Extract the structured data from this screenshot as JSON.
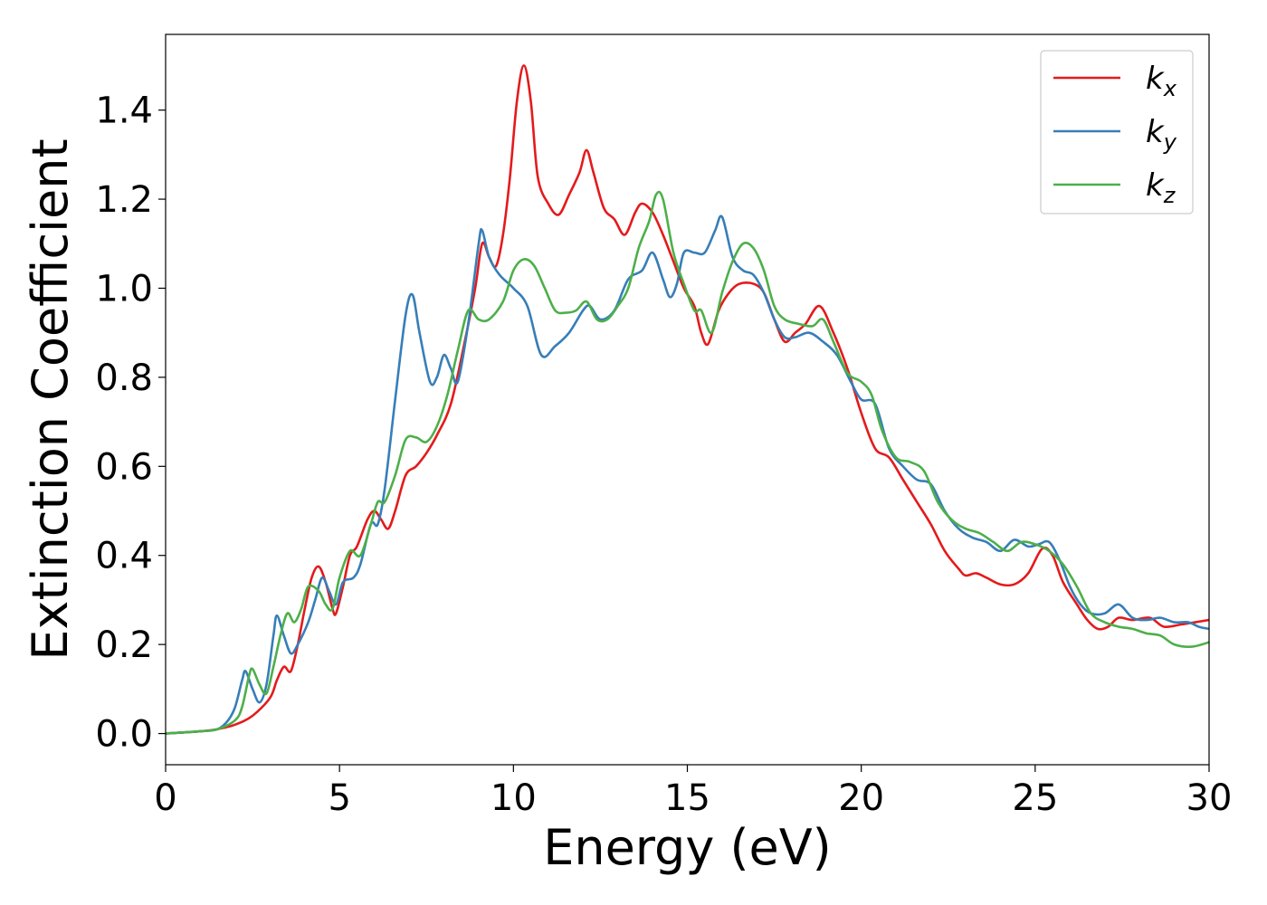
{
  "chart_data": {
    "type": "line",
    "xlabel": "Energy (eV)",
    "ylabel": "Extinction Coefficient",
    "xlim": [
      0,
      30
    ],
    "ylim": [
      -0.07,
      1.57
    ],
    "xticks": [
      0,
      5,
      10,
      15,
      20,
      25,
      30
    ],
    "xtick_labels": [
      "0",
      "5",
      "10",
      "15",
      "20",
      "25",
      "30"
    ],
    "yticks": [
      0.0,
      0.2,
      0.4,
      0.6,
      0.8,
      1.0,
      1.2,
      1.4
    ],
    "ytick_labels": [
      "0.0",
      "0.2",
      "0.4",
      "0.6",
      "0.8",
      "1.0",
      "1.2",
      "1.4"
    ],
    "grid": false,
    "legend_position": "top-right",
    "series": [
      {
        "name": "k",
        "subscript": "x",
        "color": "#e41a1c",
        "points": [
          [
            0,
            0.0
          ],
          [
            1,
            0.005
          ],
          [
            1.5,
            0.01
          ],
          [
            2,
            0.02
          ],
          [
            2.5,
            0.04
          ],
          [
            3,
            0.08
          ],
          [
            3.2,
            0.12
          ],
          [
            3.4,
            0.15
          ],
          [
            3.6,
            0.14
          ],
          [
            3.8,
            0.2
          ],
          [
            4.0,
            0.28
          ],
          [
            4.2,
            0.35
          ],
          [
            4.4,
            0.375
          ],
          [
            4.6,
            0.34
          ],
          [
            4.8,
            0.28
          ],
          [
            4.9,
            0.27
          ],
          [
            5.1,
            0.33
          ],
          [
            5.3,
            0.4
          ],
          [
            5.5,
            0.42
          ],
          [
            5.8,
            0.48
          ],
          [
            6.0,
            0.5
          ],
          [
            6.2,
            0.48
          ],
          [
            6.4,
            0.46
          ],
          [
            6.6,
            0.5
          ],
          [
            6.9,
            0.58
          ],
          [
            7.2,
            0.6
          ],
          [
            7.5,
            0.63
          ],
          [
            7.8,
            0.67
          ],
          [
            8.2,
            0.74
          ],
          [
            8.6,
            0.88
          ],
          [
            8.9,
            1.0
          ],
          [
            9.1,
            1.1
          ],
          [
            9.3,
            1.07
          ],
          [
            9.5,
            1.05
          ],
          [
            9.7,
            1.12
          ],
          [
            9.9,
            1.25
          ],
          [
            10.1,
            1.42
          ],
          [
            10.3,
            1.5
          ],
          [
            10.5,
            1.42
          ],
          [
            10.7,
            1.25
          ],
          [
            11.0,
            1.19
          ],
          [
            11.3,
            1.165
          ],
          [
            11.6,
            1.21
          ],
          [
            11.9,
            1.26
          ],
          [
            12.1,
            1.31
          ],
          [
            12.3,
            1.26
          ],
          [
            12.6,
            1.18
          ],
          [
            12.9,
            1.155
          ],
          [
            13.2,
            1.12
          ],
          [
            13.5,
            1.17
          ],
          [
            13.7,
            1.19
          ],
          [
            14.0,
            1.17
          ],
          [
            14.3,
            1.12
          ],
          [
            14.6,
            1.06
          ],
          [
            14.9,
            1.0
          ],
          [
            15.2,
            0.96
          ],
          [
            15.4,
            0.9
          ],
          [
            15.6,
            0.875
          ],
          [
            15.9,
            0.95
          ],
          [
            16.2,
            0.99
          ],
          [
            16.5,
            1.01
          ],
          [
            16.9,
            1.01
          ],
          [
            17.2,
            0.99
          ],
          [
            17.5,
            0.93
          ],
          [
            17.8,
            0.88
          ],
          [
            18.1,
            0.9
          ],
          [
            18.4,
            0.92
          ],
          [
            18.8,
            0.96
          ],
          [
            19.2,
            0.9
          ],
          [
            19.6,
            0.82
          ],
          [
            20.0,
            0.72
          ],
          [
            20.4,
            0.64
          ],
          [
            20.8,
            0.62
          ],
          [
            21.2,
            0.57
          ],
          [
            21.6,
            0.52
          ],
          [
            22.0,
            0.47
          ],
          [
            22.4,
            0.41
          ],
          [
            22.8,
            0.37
          ],
          [
            23.0,
            0.355
          ],
          [
            23.3,
            0.36
          ],
          [
            23.6,
            0.35
          ],
          [
            24.0,
            0.335
          ],
          [
            24.4,
            0.335
          ],
          [
            24.8,
            0.36
          ],
          [
            25.2,
            0.415
          ],
          [
            25.5,
            0.4
          ],
          [
            25.8,
            0.34
          ],
          [
            26.2,
            0.29
          ],
          [
            26.5,
            0.255
          ],
          [
            26.8,
            0.235
          ],
          [
            27.1,
            0.24
          ],
          [
            27.4,
            0.26
          ],
          [
            27.8,
            0.255
          ],
          [
            28.3,
            0.26
          ],
          [
            28.7,
            0.24
          ],
          [
            29.2,
            0.245
          ],
          [
            29.6,
            0.25
          ],
          [
            30.0,
            0.255
          ]
        ]
      },
      {
        "name": "k",
        "subscript": "y",
        "color": "#377eb8",
        "points": [
          [
            0,
            0.0
          ],
          [
            1,
            0.005
          ],
          [
            1.5,
            0.01
          ],
          [
            1.8,
            0.03
          ],
          [
            2.0,
            0.06
          ],
          [
            2.2,
            0.12
          ],
          [
            2.3,
            0.14
          ],
          [
            2.5,
            0.1
          ],
          [
            2.7,
            0.07
          ],
          [
            2.9,
            0.11
          ],
          [
            3.1,
            0.22
          ],
          [
            3.2,
            0.265
          ],
          [
            3.4,
            0.22
          ],
          [
            3.6,
            0.18
          ],
          [
            3.8,
            0.2
          ],
          [
            4.1,
            0.25
          ],
          [
            4.3,
            0.3
          ],
          [
            4.5,
            0.35
          ],
          [
            4.7,
            0.32
          ],
          [
            4.9,
            0.29
          ],
          [
            5.1,
            0.34
          ],
          [
            5.4,
            0.35
          ],
          [
            5.6,
            0.38
          ],
          [
            5.9,
            0.47
          ],
          [
            6.1,
            0.47
          ],
          [
            6.3,
            0.55
          ],
          [
            6.6,
            0.75
          ],
          [
            6.9,
            0.94
          ],
          [
            7.1,
            0.985
          ],
          [
            7.3,
            0.9
          ],
          [
            7.6,
            0.79
          ],
          [
            7.8,
            0.8
          ],
          [
            8.0,
            0.85
          ],
          [
            8.2,
            0.82
          ],
          [
            8.4,
            0.79
          ],
          [
            8.7,
            0.92
          ],
          [
            9.0,
            1.1
          ],
          [
            9.1,
            1.13
          ],
          [
            9.3,
            1.07
          ],
          [
            9.6,
            1.03
          ],
          [
            10.0,
            1.0
          ],
          [
            10.4,
            0.96
          ],
          [
            10.8,
            0.85
          ],
          [
            11.2,
            0.87
          ],
          [
            11.6,
            0.9
          ],
          [
            12.0,
            0.95
          ],
          [
            12.2,
            0.96
          ],
          [
            12.5,
            0.93
          ],
          [
            12.9,
            0.95
          ],
          [
            13.3,
            1.02
          ],
          [
            13.7,
            1.04
          ],
          [
            14.0,
            1.08
          ],
          [
            14.3,
            1.02
          ],
          [
            14.5,
            0.98
          ],
          [
            14.7,
            1.01
          ],
          [
            14.9,
            1.08
          ],
          [
            15.2,
            1.08
          ],
          [
            15.5,
            1.08
          ],
          [
            15.8,
            1.13
          ],
          [
            16.0,
            1.16
          ],
          [
            16.3,
            1.07
          ],
          [
            16.6,
            1.04
          ],
          [
            16.9,
            1.03
          ],
          [
            17.2,
            0.99
          ],
          [
            17.5,
            0.93
          ],
          [
            17.8,
            0.89
          ],
          [
            18.1,
            0.89
          ],
          [
            18.5,
            0.9
          ],
          [
            18.9,
            0.88
          ],
          [
            19.3,
            0.85
          ],
          [
            19.7,
            0.79
          ],
          [
            20.0,
            0.75
          ],
          [
            20.4,
            0.74
          ],
          [
            20.8,
            0.64
          ],
          [
            21.2,
            0.6
          ],
          [
            21.6,
            0.57
          ],
          [
            22.0,
            0.56
          ],
          [
            22.4,
            0.5
          ],
          [
            22.8,
            0.46
          ],
          [
            23.2,
            0.44
          ],
          [
            23.6,
            0.43
          ],
          [
            24.0,
            0.41
          ],
          [
            24.4,
            0.435
          ],
          [
            24.8,
            0.42
          ],
          [
            25.1,
            0.425
          ],
          [
            25.4,
            0.43
          ],
          [
            25.7,
            0.39
          ],
          [
            26.0,
            0.33
          ],
          [
            26.3,
            0.29
          ],
          [
            26.6,
            0.27
          ],
          [
            27.0,
            0.27
          ],
          [
            27.4,
            0.29
          ],
          [
            27.8,
            0.26
          ],
          [
            28.2,
            0.255
          ],
          [
            28.6,
            0.26
          ],
          [
            29.0,
            0.25
          ],
          [
            29.4,
            0.25
          ],
          [
            29.7,
            0.24
          ],
          [
            30.0,
            0.235
          ]
        ]
      },
      {
        "name": "k",
        "subscript": "z",
        "color": "#4daf4a",
        "points": [
          [
            0,
            0.0
          ],
          [
            1,
            0.005
          ],
          [
            1.5,
            0.01
          ],
          [
            2.0,
            0.03
          ],
          [
            2.2,
            0.06
          ],
          [
            2.4,
            0.13
          ],
          [
            2.5,
            0.145
          ],
          [
            2.7,
            0.11
          ],
          [
            2.9,
            0.09
          ],
          [
            3.1,
            0.15
          ],
          [
            3.3,
            0.22
          ],
          [
            3.5,
            0.27
          ],
          [
            3.7,
            0.25
          ],
          [
            3.9,
            0.28
          ],
          [
            4.1,
            0.33
          ],
          [
            4.4,
            0.32
          ],
          [
            4.6,
            0.29
          ],
          [
            4.8,
            0.28
          ],
          [
            5.0,
            0.35
          ],
          [
            5.3,
            0.41
          ],
          [
            5.6,
            0.4
          ],
          [
            5.9,
            0.47
          ],
          [
            6.1,
            0.52
          ],
          [
            6.3,
            0.52
          ],
          [
            6.6,
            0.58
          ],
          [
            6.9,
            0.66
          ],
          [
            7.2,
            0.665
          ],
          [
            7.5,
            0.655
          ],
          [
            7.8,
            0.69
          ],
          [
            8.1,
            0.76
          ],
          [
            8.4,
            0.86
          ],
          [
            8.7,
            0.95
          ],
          [
            9.0,
            0.93
          ],
          [
            9.3,
            0.93
          ],
          [
            9.7,
            0.97
          ],
          [
            10.0,
            1.04
          ],
          [
            10.3,
            1.065
          ],
          [
            10.6,
            1.05
          ],
          [
            10.9,
            1.0
          ],
          [
            11.2,
            0.95
          ],
          [
            11.5,
            0.945
          ],
          [
            11.8,
            0.95
          ],
          [
            12.1,
            0.97
          ],
          [
            12.4,
            0.93
          ],
          [
            12.7,
            0.93
          ],
          [
            13.0,
            0.96
          ],
          [
            13.3,
            1.0
          ],
          [
            13.6,
            1.09
          ],
          [
            13.9,
            1.15
          ],
          [
            14.1,
            1.21
          ],
          [
            14.3,
            1.2
          ],
          [
            14.6,
            1.08
          ],
          [
            14.9,
            1.01
          ],
          [
            15.2,
            0.95
          ],
          [
            15.4,
            0.95
          ],
          [
            15.7,
            0.9
          ],
          [
            16.0,
            0.99
          ],
          [
            16.3,
            1.06
          ],
          [
            16.6,
            1.1
          ],
          [
            16.9,
            1.09
          ],
          [
            17.2,
            1.04
          ],
          [
            17.5,
            0.96
          ],
          [
            17.8,
            0.93
          ],
          [
            18.2,
            0.92
          ],
          [
            18.6,
            0.915
          ],
          [
            18.9,
            0.93
          ],
          [
            19.2,
            0.88
          ],
          [
            19.6,
            0.81
          ],
          [
            20.0,
            0.79
          ],
          [
            20.3,
            0.76
          ],
          [
            20.6,
            0.68
          ],
          [
            21.0,
            0.62
          ],
          [
            21.4,
            0.61
          ],
          [
            21.8,
            0.59
          ],
          [
            22.2,
            0.52
          ],
          [
            22.6,
            0.48
          ],
          [
            23.0,
            0.46
          ],
          [
            23.4,
            0.45
          ],
          [
            23.8,
            0.43
          ],
          [
            24.2,
            0.41
          ],
          [
            24.6,
            0.43
          ],
          [
            25.0,
            0.425
          ],
          [
            25.4,
            0.41
          ],
          [
            25.8,
            0.38
          ],
          [
            26.2,
            0.33
          ],
          [
            26.6,
            0.27
          ],
          [
            27.0,
            0.25
          ],
          [
            27.4,
            0.24
          ],
          [
            27.8,
            0.235
          ],
          [
            28.2,
            0.225
          ],
          [
            28.6,
            0.22
          ],
          [
            29.0,
            0.2
          ],
          [
            29.5,
            0.195
          ],
          [
            30.0,
            0.205
          ]
        ]
      }
    ]
  }
}
